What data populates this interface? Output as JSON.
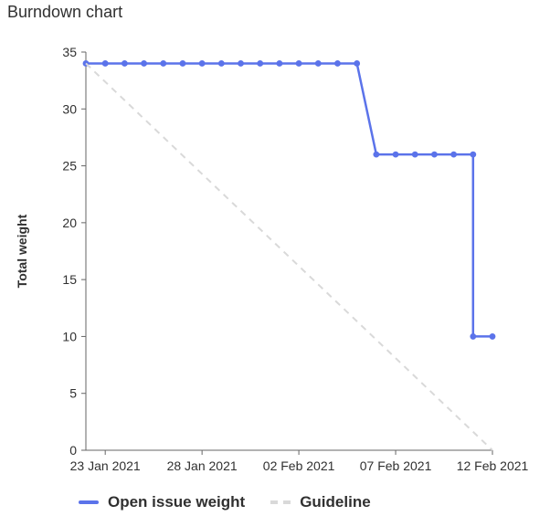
{
  "page": {
    "title": "Burndown chart"
  },
  "chart_data": {
    "type": "line",
    "title": "",
    "xlabel": "",
    "ylabel": "Total weight",
    "ylim": [
      0,
      35
    ],
    "yticks": [
      0,
      5,
      10,
      15,
      20,
      25,
      30,
      35
    ],
    "xlim": [
      "2021-01-22",
      "2021-02-12"
    ],
    "xtick_labels": [
      {
        "date": "2021-01-23",
        "label": "23 Jan 2021"
      },
      {
        "date": "2021-01-28",
        "label": "28 Jan 2021"
      },
      {
        "date": "2021-02-02",
        "label": "02 Feb 2021"
      },
      {
        "date": "2021-02-07",
        "label": "07 Feb 2021"
      },
      {
        "date": "2021-02-12",
        "label": "12 Feb 2021"
      }
    ],
    "series": [
      {
        "name": "Open issue weight",
        "color": "#5b73ea",
        "x": [
          "2021-01-22",
          "2021-01-23",
          "2021-01-24",
          "2021-01-25",
          "2021-01-26",
          "2021-01-27",
          "2021-01-28",
          "2021-01-29",
          "2021-01-30",
          "2021-01-31",
          "2021-02-01",
          "2021-02-02",
          "2021-02-03",
          "2021-02-04",
          "2021-02-05",
          "2021-02-06",
          "2021-02-07",
          "2021-02-08",
          "2021-02-09",
          "2021-02-10",
          "2021-02-11",
          "2021-02-11",
          "2021-02-12"
        ],
        "y": [
          34,
          34,
          34,
          34,
          34,
          34,
          34,
          34,
          34,
          34,
          34,
          34,
          34,
          34,
          34,
          26,
          26,
          26,
          26,
          26,
          26,
          10,
          10
        ],
        "markers": true
      },
      {
        "name": "Guideline",
        "color": "#d9d9d9",
        "dashed": true,
        "x": [
          "2021-01-22",
          "2021-02-12"
        ],
        "y": [
          34,
          0
        ],
        "markers": false
      }
    ],
    "legend_position": "bottom-left",
    "grid": false
  },
  "legend": {
    "items": [
      {
        "label": "Open issue weight",
        "color": "#5b73ea"
      },
      {
        "label": "Guideline",
        "color": "#d9d9d9"
      }
    ]
  }
}
